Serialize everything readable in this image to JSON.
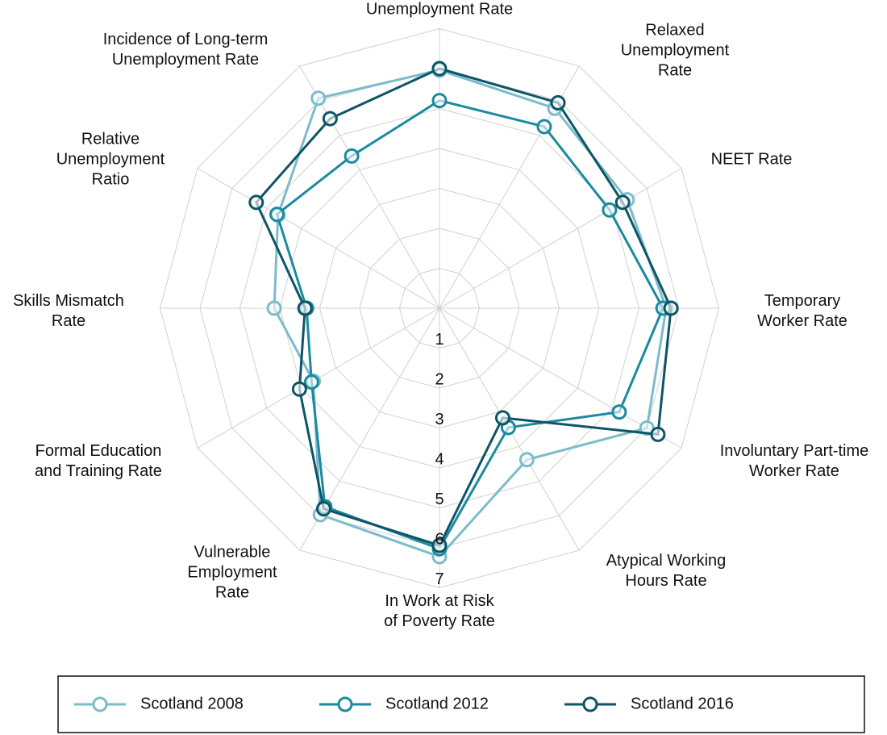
{
  "chart_data": {
    "type": "radar",
    "categories": [
      [
        "Unemployment Rate"
      ],
      [
        "Relaxed",
        "Unemployment",
        "Rate"
      ],
      [
        "NEET Rate"
      ],
      [
        "Temporary",
        "Worker Rate"
      ],
      [
        "Involuntary Part-time",
        "Worker Rate"
      ],
      [
        "Atypical Working",
        "Hours Rate"
      ],
      [
        "In Work at Risk",
        "of Poverty Rate"
      ],
      [
        "Vulnerable",
        "Employment",
        "Rate"
      ],
      [
        "Formal Education",
        "and Training Rate"
      ],
      [
        "Skills Mismatch",
        "Rate"
      ],
      [
        "Relative",
        "Unemployment",
        "Ratio"
      ],
      [
        "Incidence of Long-term",
        "Unemployment Rate"
      ]
    ],
    "series": [
      {
        "name": "Scotland 2008",
        "color": "#7bbccb",
        "values": [
          5.96,
          5.78,
          5.43,
          5.68,
          6.0,
          4.38,
          6.22,
          5.97,
          3.65,
          4.14,
          4.67,
          6.07
        ]
      },
      {
        "name": "Scotland 2012",
        "color": "#1a8aa0",
        "values": [
          5.2,
          5.25,
          4.92,
          5.6,
          5.2,
          3.45,
          6.02,
          5.74,
          3.7,
          3.33,
          4.7,
          4.4
        ]
      },
      {
        "name": "Scotland 2016",
        "color": "#0d5566",
        "values": [
          6.0,
          5.94,
          5.3,
          5.8,
          6.32,
          3.17,
          5.94,
          5.8,
          4.05,
          3.37,
          5.3,
          5.48
        ]
      }
    ],
    "ylim": [
      0,
      7
    ],
    "yticks": [
      1,
      2,
      3,
      4,
      5,
      6,
      7
    ],
    "grid": true,
    "legend": "bottom"
  }
}
